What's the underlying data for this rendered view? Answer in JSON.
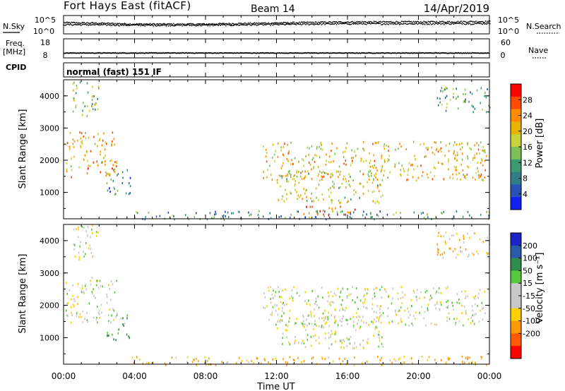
{
  "header": {
    "station": "Fort Hays East (fitACF)",
    "beam": "Beam 14",
    "date": "14/Apr/2019"
  },
  "strip_labels": {
    "n_sky": "N.Sky",
    "n_search": "N.Search",
    "freq": "Freq.",
    "freq_unit": "[MHz]",
    "nave": "Nave",
    "cpid": "CPID",
    "mode": "normal (fast) 151 IF",
    "ticks_noise_left": [
      "10^5",
      "10^0"
    ],
    "ticks_noise_right": [
      "10^5",
      "10^0"
    ],
    "ticks_freq": [
      "18",
      "8"
    ],
    "ticks_nave": [
      "60",
      "0"
    ]
  },
  "axes": {
    "ylabel": "Slant Range [km]",
    "xlabel": "Time UT",
    "xticks": [
      "00:00",
      "04:00",
      "08:00",
      "12:00",
      "16:00",
      "20:00",
      "00:00"
    ],
    "yticks": [
      "1000",
      "2000",
      "3000",
      "4000"
    ]
  },
  "power_bar": {
    "label": "Power [dB]",
    "ticks": [
      "28",
      "24",
      "20",
      "16",
      "12",
      "8",
      "4"
    ],
    "colors": [
      "#ff0000",
      "#ff4a00",
      "#ff8c00",
      "#e8b400",
      "#c8d23c",
      "#7cc05a",
      "#3c9a70",
      "#2f7e86",
      "#2a52b4",
      "#1020f0"
    ]
  },
  "velocity_bar": {
    "label": "Velocity [m s⁻¹]",
    "ticks": [
      "200",
      "100",
      "50",
      "15",
      "-15",
      "-50",
      "-100",
      "-200"
    ],
    "colors": [
      "#1c24c8",
      "#2a5aa8",
      "#2e8c4a",
      "#56c83a",
      "#c8c8c8",
      "#c8c8c8",
      "#ffd000",
      "#ff9a00",
      "#ff5a00",
      "#ff0000"
    ]
  },
  "chart_data": [
    {
      "type": "line",
      "title": "N.Sky / N.Search",
      "ylim": [
        1,
        100000
      ],
      "log": true,
      "series": [
        {
          "name": "N.Sky",
          "x": [
            0,
            4,
            8,
            12,
            16,
            20,
            24
          ],
          "values": [
            1000,
            400,
            400,
            800,
            1500,
            1600,
            2000
          ]
        },
        {
          "name": "N.Search",
          "x": [
            0,
            4,
            8,
            12,
            16,
            20,
            24
          ],
          "values": [
            300,
            200,
            200,
            300,
            500,
            500,
            600
          ]
        }
      ]
    },
    {
      "type": "line",
      "title": "Freq. [MHz] / Nave",
      "series": [
        {
          "name": "Freq.",
          "x": [
            0,
            4,
            8,
            12,
            16,
            20,
            24
          ],
          "values": [
            10.5,
            10.5,
            10.5,
            10.5,
            10.5,
            10.5,
            10.5
          ]
        },
        {
          "name": "Nave",
          "x": [
            0,
            4,
            8,
            12,
            16,
            20,
            24
          ],
          "values": [
            16,
            16,
            16,
            16,
            16,
            16,
            16
          ]
        }
      ]
    },
    {
      "type": "heatmap",
      "title": "Power [dB]",
      "xlabel": "Time UT",
      "ylabel": "Slant Range [km]",
      "xlim": [
        0,
        24
      ],
      "ylim": [
        180,
        4500
      ],
      "regions": [
        {
          "t": [
            0.1,
            3.0
          ],
          "r": [
            1500,
            2900
          ],
          "value": 22
        },
        {
          "t": [
            2.4,
            3.8
          ],
          "r": [
            950,
            1750
          ],
          "value": 8
        },
        {
          "t": [
            0.5,
            2.0
          ],
          "r": [
            3400,
            4500
          ],
          "value": 14
        },
        {
          "t": [
            11.2,
            23.9
          ],
          "r": [
            1400,
            2600
          ],
          "value": 20
        },
        {
          "t": [
            12.0,
            18.0
          ],
          "r": [
            700,
            1700
          ],
          "value": 18
        },
        {
          "t": [
            13.5,
            16.5
          ],
          "r": [
            300,
            600
          ],
          "value": 28
        },
        {
          "t": [
            3.5,
            24.0
          ],
          "r": [
            180,
            450
          ],
          "value": 10
        },
        {
          "t": [
            21.0,
            24.0
          ],
          "r": [
            3500,
            4300
          ],
          "value": 12
        }
      ]
    },
    {
      "type": "heatmap",
      "title": "Velocity [m s⁻¹]",
      "xlabel": "Time UT",
      "ylabel": "Slant Range [km]",
      "xlim": [
        0,
        24
      ],
      "ylim": [
        180,
        4500
      ],
      "regions": [
        {
          "t": [
            0.1,
            3.0
          ],
          "r": [
            1500,
            2900
          ],
          "value": 0
        },
        {
          "t": [
            2.4,
            3.8
          ],
          "r": [
            950,
            1750
          ],
          "value": 30
        },
        {
          "t": [
            0.5,
            2.0
          ],
          "r": [
            3400,
            4500
          ],
          "value": 0
        },
        {
          "t": [
            11.2,
            23.9
          ],
          "r": [
            1400,
            2600
          ],
          "value": 0
        },
        {
          "t": [
            12.0,
            18.0
          ],
          "r": [
            700,
            1700
          ],
          "value": 0
        },
        {
          "t": [
            3.5,
            24.0
          ],
          "r": [
            180,
            450
          ],
          "value": -40
        },
        {
          "t": [
            21.0,
            24.0
          ],
          "r": [
            3500,
            4300
          ],
          "value": -30
        }
      ]
    }
  ]
}
